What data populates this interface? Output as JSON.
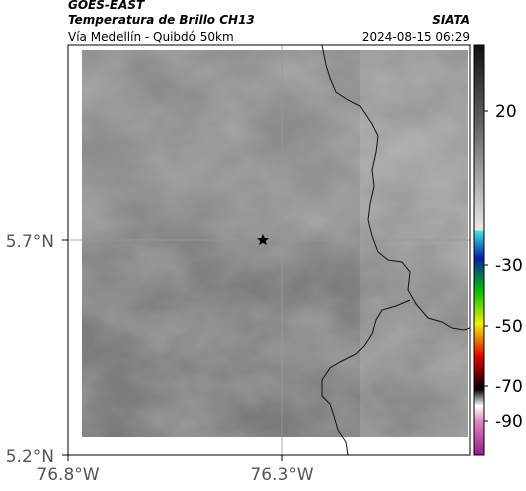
{
  "header": {
    "title": "GOES-EAST",
    "subtitle": "Temperatura de Brillo CH13",
    "source": "SIATA",
    "route": "Vía Medellín - Quibdó 50km",
    "timestamp": "2024-08-15 06:29"
  },
  "axes": {
    "lat_ticks": [
      "5.7°N",
      "5.2°N"
    ],
    "lon_ticks": [
      "76.8°W",
      "76.3°W"
    ]
  },
  "colorbar": {
    "ticks": [
      "20",
      "-30",
      "-50",
      "-70",
      "-90"
    ]
  }
}
